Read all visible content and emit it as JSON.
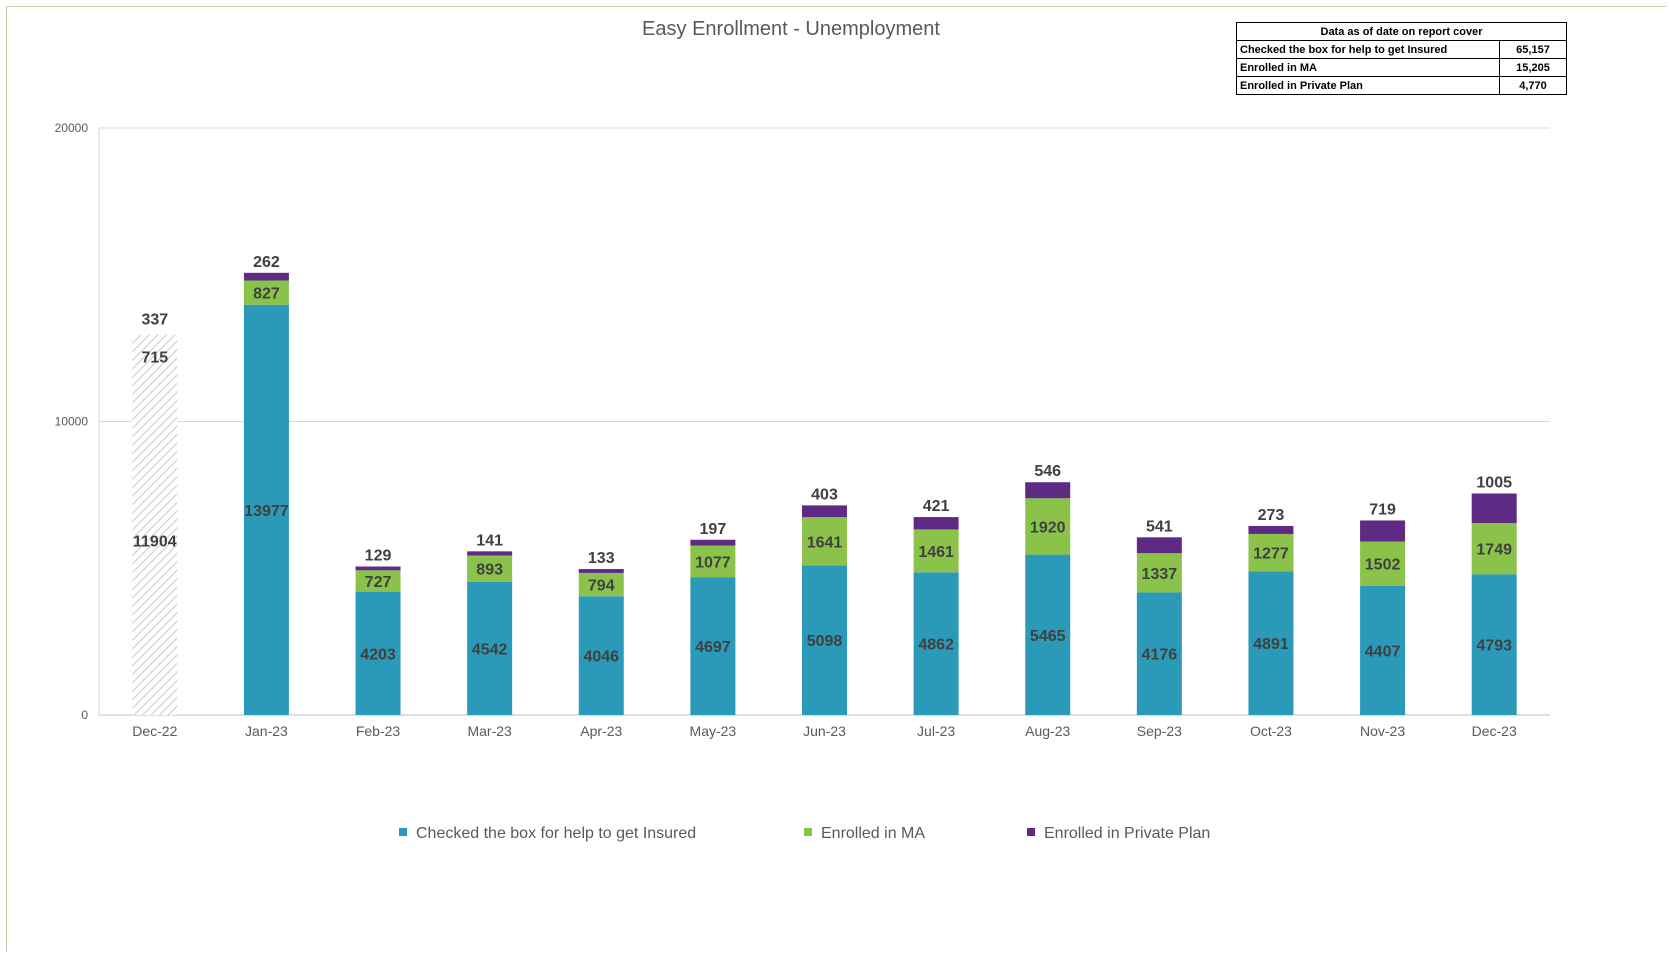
{
  "chart_data": {
    "type": "bar",
    "stacked": true,
    "title": "Easy Enrollment - Unemployment",
    "categories": [
      "Dec-22",
      "Jan-23",
      "Feb-23",
      "Mar-23",
      "Apr-23",
      "May-23",
      "Jun-23",
      "Jul-23",
      "Aug-23",
      "Sep-23",
      "Oct-23",
      "Nov-23",
      "Dec-23"
    ],
    "series": [
      {
        "name": "Checked the box for help to get Insured",
        "color": "#2B9AB8",
        "values": [
          11904,
          13977,
          4203,
          4542,
          4046,
          4697,
          5098,
          4862,
          5465,
          4176,
          4891,
          4407,
          4793
        ]
      },
      {
        "name": "Enrolled in MA",
        "color": "#8BC34A",
        "values": [
          715,
          827,
          727,
          893,
          794,
          1077,
          1641,
          1461,
          1920,
          1337,
          1277,
          1502,
          1749
        ]
      },
      {
        "name": "Enrolled in Private Plan",
        "color": "#5E2A84",
        "values": [
          337,
          262,
          129,
          141,
          133,
          197,
          403,
          421,
          546,
          541,
          273,
          719,
          1005
        ]
      }
    ],
    "hatched_categories": [
      "Dec-22"
    ],
    "yticks": [
      0,
      10000,
      20000
    ],
    "ylim": [
      0,
      20000
    ],
    "grid": true,
    "legend": "bottom"
  },
  "summary_table": {
    "header": "Data as of date on report cover",
    "rows": [
      {
        "label": "Checked the box for help to get Insured",
        "value": "65,157"
      },
      {
        "label": "Enrolled in MA",
        "value": "15,205"
      },
      {
        "label": "Enrolled in Private Plan",
        "value": "4,770"
      }
    ]
  }
}
